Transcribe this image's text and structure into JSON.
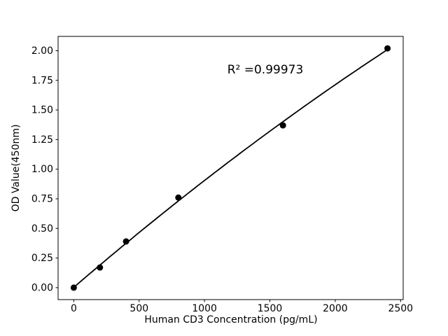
{
  "figure": {
    "background": "#ffffff",
    "foreground": "#000000"
  },
  "chart_data": {
    "type": "scatter",
    "title": "",
    "xlabel": "Human CD3 Concentration (pg/mL)",
    "ylabel": "OD Value(450nm)",
    "x": [
      0,
      200,
      400,
      800,
      1600,
      2400
    ],
    "y": [
      0.0,
      0.17,
      0.39,
      0.76,
      1.37,
      2.02
    ],
    "xlim": [
      -120,
      2520
    ],
    "ylim": [
      -0.101,
      2.121
    ],
    "xticks": [
      0,
      500,
      1000,
      1500,
      2000,
      2500
    ],
    "yticks": [
      0.0,
      0.25,
      0.5,
      0.75,
      1.0,
      1.25,
      1.5,
      1.75,
      2.0
    ],
    "ytick_decimals": 2,
    "annotation": {
      "text": "R² =0.99973"
    },
    "fit": "quadratic",
    "grid": false,
    "legend": null,
    "marker_color": "#000000",
    "line_color": "#000000",
    "marker_radius": 4.5,
    "line_width": 1.8
  }
}
